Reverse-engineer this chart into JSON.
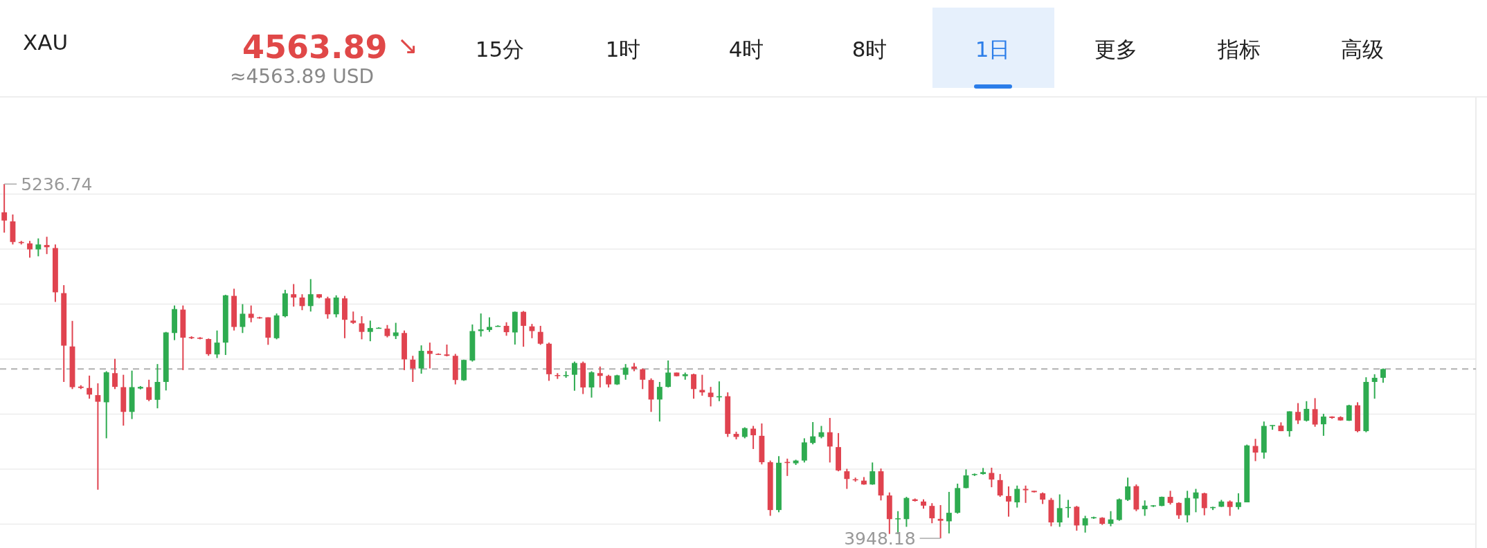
{
  "chart_data": {
    "type": "candlestick",
    "title": "XAU",
    "annotations": [
      "4563.89",
      "↘",
      "≈4563.89 USD",
      "15分",
      "1时",
      "4时",
      "8时",
      "1日",
      "更多",
      "指标",
      "高级",
      "5236.74",
      "3948.18"
    ],
    "categories": [
      null,
      null,
      null,
      null,
      null,
      null,
      null,
      null,
      null,
      null,
      null,
      null,
      null,
      null,
      null,
      null,
      null,
      null,
      null,
      null,
      null,
      null,
      null,
      null,
      null,
      null,
      null,
      null,
      null,
      null,
      null,
      null,
      null,
      null,
      null,
      null,
      null,
      null,
      null,
      null,
      null,
      null,
      null,
      null,
      null,
      null,
      null,
      null,
      null,
      null,
      null,
      null,
      null,
      null,
      null,
      null,
      null,
      null,
      null,
      null,
      null,
      null,
      null,
      null,
      null,
      null,
      null,
      null,
      null,
      null,
      null,
      null,
      null,
      null,
      null,
      null,
      null,
      null,
      null,
      null,
      null,
      null,
      null,
      null,
      null,
      null,
      null,
      null,
      null,
      null,
      null,
      null,
      null,
      null,
      null,
      null,
      null,
      null,
      null,
      null,
      null,
      null,
      null,
      null,
      null,
      null,
      null,
      null,
      null,
      null,
      null,
      null,
      null,
      null,
      null,
      null,
      null,
      null,
      null,
      null,
      null,
      null,
      null,
      null,
      null,
      null,
      null,
      null,
      null,
      null,
      null,
      null,
      null,
      null,
      null,
      null,
      null,
      null,
      null,
      null,
      null,
      null,
      null,
      null,
      null,
      null,
      null,
      null,
      null,
      null,
      null,
      null,
      null,
      null,
      null,
      null,
      null,
      null,
      null,
      null,
      null,
      null,
      null
    ],
    "ohlc": [
      [
        5134,
        5236.74,
        5060,
        5104
      ],
      [
        5101,
        5126,
        5017,
        5026
      ],
      [
        5026,
        5030,
        5017,
        5022
      ],
      [
        5021,
        5030,
        4969,
        4999
      ],
      [
        4999,
        5039,
        4974,
        5017
      ],
      [
        5015,
        5045,
        4982,
        5007
      ],
      [
        5004,
        5017,
        4808,
        4843
      ],
      [
        4840,
        4869,
        4517,
        4649
      ],
      [
        4646,
        4739,
        4491,
        4498
      ],
      [
        4500,
        4505,
        4491,
        4495
      ],
      [
        4495,
        4540,
        4456,
        4471
      ],
      [
        4469,
        4512,
        4125,
        4445
      ],
      [
        4443,
        4556,
        4312,
        4552
      ],
      [
        4549,
        4601,
        4491,
        4499
      ],
      [
        4498,
        4543,
        4358,
        4408
      ],
      [
        4408,
        4558,
        4382,
        4498
      ],
      [
        4493,
        4502,
        4490,
        4499
      ],
      [
        4498,
        4525,
        4447,
        4452
      ],
      [
        4452,
        4582,
        4421,
        4517
      ],
      [
        4517,
        4699,
        4486,
        4697
      ],
      [
        4695,
        4795,
        4669,
        4782
      ],
      [
        4780,
        4795,
        4560,
        4678
      ],
      [
        4680,
        4683,
        4673,
        4676
      ],
      [
        4678,
        4680,
        4672,
        4674
      ],
      [
        4673,
        4675,
        4612,
        4618
      ],
      [
        4617,
        4704,
        4604,
        4660
      ],
      [
        4660,
        4834,
        4615,
        4832
      ],
      [
        4830,
        4856,
        4704,
        4717
      ],
      [
        4717,
        4800,
        4695,
        4765
      ],
      [
        4765,
        4795,
        4734,
        4750
      ],
      [
        4752,
        4754,
        4747,
        4749
      ],
      [
        4752,
        4752,
        4652,
        4678
      ],
      [
        4676,
        4766,
        4672,
        4759
      ],
      [
        4756,
        4852,
        4752,
        4839
      ],
      [
        4836,
        4873,
        4791,
        4824
      ],
      [
        4824,
        4836,
        4778,
        4793
      ],
      [
        4793,
        4891,
        4773,
        4836
      ],
      [
        4836,
        4836,
        4821,
        4824
      ],
      [
        4821,
        4827,
        4747,
        4763
      ],
      [
        4763,
        4832,
        4752,
        4824
      ],
      [
        4821,
        4830,
        4676,
        4743
      ],
      [
        4740,
        4773,
        4728,
        4732
      ],
      [
        4730,
        4756,
        4672,
        4699
      ],
      [
        4699,
        4740,
        4665,
        4713
      ],
      [
        4712,
        4716,
        4711,
        4714
      ],
      [
        4711,
        4724,
        4679,
        4684
      ],
      [
        4684,
        4732,
        4673,
        4697
      ],
      [
        4695,
        4704,
        4560,
        4599
      ],
      [
        4598,
        4612,
        4517,
        4566
      ],
      [
        4566,
        4650,
        4547,
        4630
      ],
      [
        4630,
        4660,
        4566,
        4619
      ],
      [
        4619,
        4621,
        4615,
        4617
      ],
      [
        4617,
        4653,
        4610,
        4612
      ],
      [
        4612,
        4619,
        4508,
        4524
      ],
      [
        4523,
        4598,
        4521,
        4597
      ],
      [
        4595,
        4726,
        4591,
        4702
      ],
      [
        4702,
        4766,
        4682,
        4708
      ],
      [
        4706,
        4752,
        4699,
        4717
      ],
      [
        4719,
        4723,
        4718,
        4721
      ],
      [
        4721,
        4734,
        4685,
        4698
      ],
      [
        4697,
        4773,
        4653,
        4772
      ],
      [
        4772,
        4775,
        4645,
        4721
      ],
      [
        4719,
        4728,
        4676,
        4702
      ],
      [
        4699,
        4721,
        4652,
        4656
      ],
      [
        4656,
        4660,
        4521,
        4545
      ],
      [
        4542,
        4549,
        4528,
        4539
      ],
      [
        4539,
        4556,
        4532,
        4542
      ],
      [
        4543,
        4591,
        4485,
        4586
      ],
      [
        4586,
        4591,
        4473,
        4497
      ],
      [
        4497,
        4556,
        4460,
        4552
      ],
      [
        4549,
        4573,
        4497,
        4539
      ],
      [
        4539,
        4543,
        4497,
        4508
      ],
      [
        4508,
        4543,
        4506,
        4541
      ],
      [
        4543,
        4582,
        4525,
        4569
      ],
      [
        4573,
        4586,
        4556,
        4565
      ],
      [
        4563,
        4566,
        4491,
        4525
      ],
      [
        4524,
        4530,
        4408,
        4453
      ],
      [
        4453,
        4517,
        4373,
        4499
      ],
      [
        4499,
        4595,
        4497,
        4551
      ],
      [
        4551,
        4551,
        4537,
        4538
      ],
      [
        4538,
        4551,
        4525,
        4545
      ],
      [
        4545,
        4547,
        4456,
        4491
      ],
      [
        4488,
        4543,
        4467,
        4479
      ],
      [
        4478,
        4499,
        4428,
        4462
      ],
      [
        4461,
        4519,
        4447,
        4465
      ],
      [
        4465,
        4479,
        4317,
        4328
      ],
      [
        4328,
        4336,
        4308,
        4317
      ],
      [
        4317,
        4352,
        4312,
        4349
      ],
      [
        4347,
        4357,
        4273,
        4323
      ],
      [
        4321,
        4366,
        4217,
        4225
      ],
      [
        4225,
        4231,
        4030,
        4051
      ],
      [
        4051,
        4247,
        4043,
        4223
      ],
      [
        4226,
        4238,
        4175,
        4222
      ],
      [
        4221,
        4234,
        4215,
        4231
      ],
      [
        4231,
        4312,
        4224,
        4297
      ],
      [
        4295,
        4371,
        4290,
        4319
      ],
      [
        4317,
        4357,
        4312,
        4334
      ],
      [
        4334,
        4386,
        4224,
        4282
      ],
      [
        4280,
        4331,
        4192,
        4195
      ],
      [
        4192,
        4201,
        4128,
        4164
      ],
      [
        4163,
        4169,
        4154,
        4160
      ],
      [
        4158,
        4171,
        4143,
        4144
      ],
      [
        4144,
        4224,
        4143,
        4192
      ],
      [
        4192,
        4202,
        4086,
        4104
      ],
      [
        4104,
        4115,
        3964,
        4018
      ],
      [
        4018,
        4047,
        3964,
        4021
      ],
      [
        4018,
        4099,
        3990,
        4095
      ],
      [
        4090,
        4093,
        4082,
        4084
      ],
      [
        4082,
        4090,
        4056,
        4067
      ],
      [
        4066,
        4076,
        4003,
        4021
      ],
      [
        4019,
        4069,
        3948.18,
        4012
      ],
      [
        4010,
        4117,
        3966,
        4041
      ],
      [
        4041,
        4147,
        4038,
        4131
      ],
      [
        4131,
        4199,
        4130,
        4177
      ],
      [
        4179,
        4184,
        4175,
        4182
      ],
      [
        4182,
        4204,
        4180,
        4189
      ],
      [
        4186,
        4205,
        4134,
        4162
      ],
      [
        4160,
        4182,
        4099,
        4104
      ],
      [
        4102,
        4137,
        4027,
        4082
      ],
      [
        4079,
        4140,
        4060,
        4128
      ],
      [
        4128,
        4140,
        4077,
        4123
      ],
      [
        4121,
        4121,
        4115,
        4116
      ],
      [
        4112,
        4115,
        4073,
        4089
      ],
      [
        4088,
        4095,
        3992,
        4006
      ],
      [
        4006,
        4108,
        3990,
        4058
      ],
      [
        4060,
        4088,
        4023,
        4062
      ],
      [
        4063,
        4066,
        3976,
        3995
      ],
      [
        3995,
        4030,
        3969,
        4021
      ],
      [
        4021,
        4027,
        4019,
        4025
      ],
      [
        4023,
        4025,
        3997,
        4001
      ],
      [
        4001,
        4047,
        3992,
        4017
      ],
      [
        4015,
        4093,
        4012,
        4090
      ],
      [
        4088,
        4169,
        4084,
        4137
      ],
      [
        4138,
        4144,
        4047,
        4053
      ],
      [
        4054,
        4086,
        4030,
        4067
      ],
      [
        4066,
        4069,
        4062,
        4068
      ],
      [
        4066,
        4100,
        4065,
        4099
      ],
      [
        4099,
        4121,
        4071,
        4077
      ],
      [
        4077,
        4079,
        4019,
        4032
      ],
      [
        4032,
        4121,
        4006,
        4095
      ],
      [
        4093,
        4128,
        4043,
        4115
      ],
      [
        4112,
        4114,
        4032,
        4058
      ],
      [
        4058,
        4063,
        4051,
        4062
      ],
      [
        4063,
        4088,
        4062,
        4082
      ],
      [
        4082,
        4086,
        4030,
        4062
      ],
      [
        4062,
        4112,
        4053,
        4079
      ],
      [
        4079,
        4289,
        4079,
        4286
      ],
      [
        4284,
        4310,
        4229,
        4260
      ],
      [
        4260,
        4373,
        4238,
        4357
      ],
      [
        4357,
        4360,
        4343,
        4360
      ],
      [
        4358,
        4370,
        4338,
        4338
      ],
      [
        4338,
        4410,
        4318,
        4410
      ],
      [
        4408,
        4440,
        4364,
        4377
      ],
      [
        4376,
        4447,
        4373,
        4419
      ],
      [
        4418,
        4458,
        4354,
        4362
      ],
      [
        4363,
        4401,
        4321,
        4391
      ],
      [
        4391,
        4392,
        4383,
        4386
      ],
      [
        4389,
        4392,
        4376,
        4377
      ],
      [
        4376,
        4434,
        4375,
        4432
      ],
      [
        4432,
        4443,
        4334,
        4338
      ],
      [
        4338,
        4534,
        4334,
        4517
      ],
      [
        4517,
        4545,
        4456,
        4532
      ],
      [
        4532,
        4566,
        4514,
        4563.89
      ]
    ],
    "colors": [
      "#e0434f",
      "#e0434f",
      "#e0434f",
      "#e0434f",
      "#2eab50",
      "#e0434f",
      "#e0434f",
      "#e0434f",
      "#e0434f",
      "#e0434f",
      "#e0434f",
      "#e0434f",
      "#2eab50",
      "#e0434f",
      "#e0434f",
      "#2eab50",
      "#2eab50",
      "#e0434f",
      "#2eab50",
      "#2eab50",
      "#2eab50",
      "#e0434f",
      "#e0434f",
      "#e0434f",
      "#e0434f",
      "#2eab50",
      "#2eab50",
      "#e0434f",
      "#2eab50",
      "#e0434f",
      "#e0434f",
      "#e0434f",
      "#2eab50",
      "#2eab50",
      "#e0434f",
      "#e0434f",
      "#2eab50",
      "#e0434f",
      "#e0434f",
      "#2eab50",
      "#e0434f",
      "#e0434f",
      "#e0434f",
      "#2eab50",
      "#2eab50",
      "#e0434f",
      "#2eab50",
      "#e0434f",
      "#e0434f",
      "#2eab50",
      "#e0434f",
      "#e0434f",
      "#e0434f",
      "#e0434f",
      "#2eab50",
      "#2eab50",
      "#2eab50",
      "#2eab50",
      "#2eab50",
      "#e0434f",
      "#2eab50",
      "#e0434f",
      "#e0434f",
      "#e0434f",
      "#e0434f",
      "#e0434f",
      "#2eab50",
      "#2eab50",
      "#e0434f",
      "#2eab50",
      "#e0434f",
      "#e0434f",
      "#2eab50",
      "#2eab50",
      "#e0434f",
      "#e0434f",
      "#e0434f",
      "#2eab50",
      "#2eab50",
      "#e0434f",
      "#2eab50",
      "#e0434f",
      "#e0434f",
      "#e0434f",
      "#2eab50",
      "#e0434f",
      "#e0434f",
      "#2eab50",
      "#e0434f",
      "#e0434f",
      "#e0434f",
      "#2eab50",
      "#e0434f",
      "#2eab50",
      "#2eab50",
      "#2eab50",
      "#2eab50",
      "#e0434f",
      "#e0434f",
      "#e0434f",
      "#e0434f",
      "#e0434f",
      "#2eab50",
      "#e0434f",
      "#e0434f",
      "#2eab50",
      "#2eab50",
      "#e0434f",
      "#e0434f",
      "#e0434f",
      "#e0434f",
      "#2eab50",
      "#2eab50",
      "#2eab50",
      "#2eab50",
      "#2eab50",
      "#e0434f",
      "#e0434f",
      "#e0434f",
      "#2eab50",
      "#e0434f",
      "#e0434f",
      "#e0434f",
      "#e0434f",
      "#2eab50",
      "#2eab50",
      "#e0434f",
      "#2eab50",
      "#2eab50",
      "#e0434f",
      "#2eab50",
      "#2eab50",
      "#2eab50",
      "#e0434f",
      "#2eab50",
      "#2eab50",
      "#2eab50",
      "#e0434f",
      "#e0434f",
      "#2eab50",
      "#2eab50",
      "#e0434f",
      "#2eab50",
      "#2eab50",
      "#e0434f",
      "#2eab50",
      "#2eab50",
      "#e0434f",
      "#2eab50",
      "#2eab50",
      "#e0434f",
      "#2eab50",
      "#e0434f",
      "#2eab50",
      "#e0434f",
      "#2eab50",
      "#e0434f",
      "#e0434f",
      "#2eab50",
      "#e0434f",
      "#2eab50",
      "#2eab50",
      "#2eab50"
    ],
    "yticks": [
      {
        "value": 4000,
        "label": null
      },
      {
        "value": 4200,
        "label": null
      },
      {
        "value": 4400,
        "label": null
      },
      {
        "value": 4600,
        "label": null
      },
      {
        "value": 4800,
        "label": null
      },
      {
        "value": 5000,
        "label": null
      },
      {
        "value": 5200,
        "label": null
      }
    ],
    "grid": "y",
    "ref_lines": [
      {
        "axis": "y",
        "value": 4563.89,
        "color": "#b0b0b0",
        "line_style": "dashed"
      }
    ]
  }
}
